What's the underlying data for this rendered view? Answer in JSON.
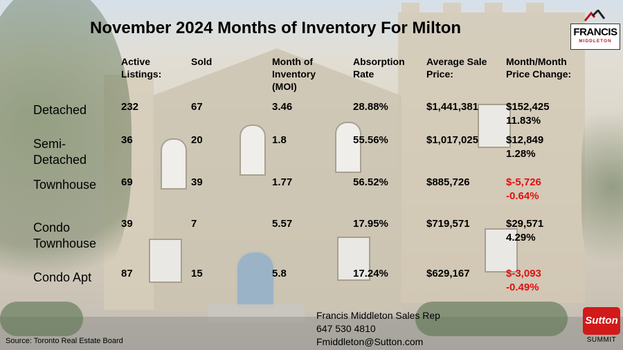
{
  "title": "November 2024 Months of Inventory For Milton",
  "logo": {
    "name": "FRANCIS",
    "sub": "MIDDLETON",
    "accent": "#c0131f"
  },
  "columns": [
    "Active\nListings:",
    "Sold",
    "Month of\nInventory\n(MOI)",
    "Absorption\nRate",
    "Average Sale\nPrice:",
    "Month/Month\nPrice Change:"
  ],
  "rows": [
    {
      "label": "Detached",
      "active": "232",
      "sold": "67",
      "moi": "3.46",
      "absorption": "28.88%",
      "avg_price": "$1,441,381",
      "change": "$152,425\n11.83%",
      "negative": false
    },
    {
      "label": "Semi-\nDetached",
      "active": "36",
      "sold": "20",
      "moi": "1.8",
      "absorption": "55.56%",
      "avg_price": "$1,017,025",
      "change": "$12,849\n1.28%",
      "negative": false
    },
    {
      "label": "Townhouse",
      "active": "69",
      "sold": "39",
      "moi": "1.77",
      "absorption": "56.52%",
      "avg_price": "$885,726",
      "change": "$-5,726\n-0.64%",
      "negative": true
    },
    {
      "label": "Condo\nTownhouse",
      "active": "39",
      "sold": "7",
      "moi": "5.57",
      "absorption": "17.95%",
      "avg_price": "$719,571",
      "change": "$29,571\n4.29%",
      "negative": false
    },
    {
      "label": "Condo Apt",
      "active": "87",
      "sold": "15",
      "moi": "5.8",
      "absorption": "17.24%",
      "avg_price": "$629,167",
      "change": "$-3,093\n-0.49%",
      "negative": true
    }
  ],
  "contact": {
    "name": "Francis Middleton Sales Rep",
    "phone": "647 530 4810",
    "email": "Fmiddleton@Sutton.com"
  },
  "source": "Source: Toronto Real Estate Board",
  "sutton_logo": {
    "name": "Sutton",
    "sub": "SUMMIT",
    "color": "#d11a1a"
  }
}
